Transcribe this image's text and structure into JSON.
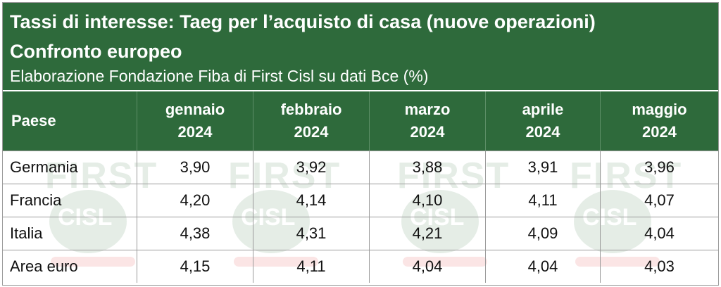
{
  "title": {
    "line1": "Tassi di interesse: Taeg per l’acquisto di casa (nuove operazioni)",
    "line2": "Confronto europeo",
    "line3": "Elaborazione Fondazione Fiba di First Cisl su dati Bce (%)"
  },
  "watermark": {
    "text": "FIRST",
    "badge": "CISL"
  },
  "table": {
    "header": {
      "country": "Paese",
      "months": [
        {
          "month": "gennaio",
          "year": "2024"
        },
        {
          "month": "febbraio",
          "year": "2024"
        },
        {
          "month": "marzo",
          "year": "2024"
        },
        {
          "month": "aprile",
          "year": "2024"
        },
        {
          "month": "maggio",
          "year": "2024"
        }
      ]
    },
    "rows": [
      {
        "country": "Germania",
        "values": [
          "3,90",
          "3,92",
          "3,88",
          "3,91",
          "3,96"
        ]
      },
      {
        "country": "Francia",
        "values": [
          "4,20",
          "4,14",
          "4,10",
          "4,11",
          "4,07"
        ]
      },
      {
        "country": "Italia",
        "values": [
          "4,38",
          "4,31",
          "4,21",
          "4,09",
          "4,04"
        ]
      },
      {
        "country": "Area euro",
        "values": [
          "4,15",
          "4,11",
          "4,04",
          "4,04",
          "4,03"
        ]
      }
    ]
  },
  "colors": {
    "header_bg": "#2e6a3b",
    "header_text": "#ffffff",
    "border": "#9a9a9a"
  }
}
